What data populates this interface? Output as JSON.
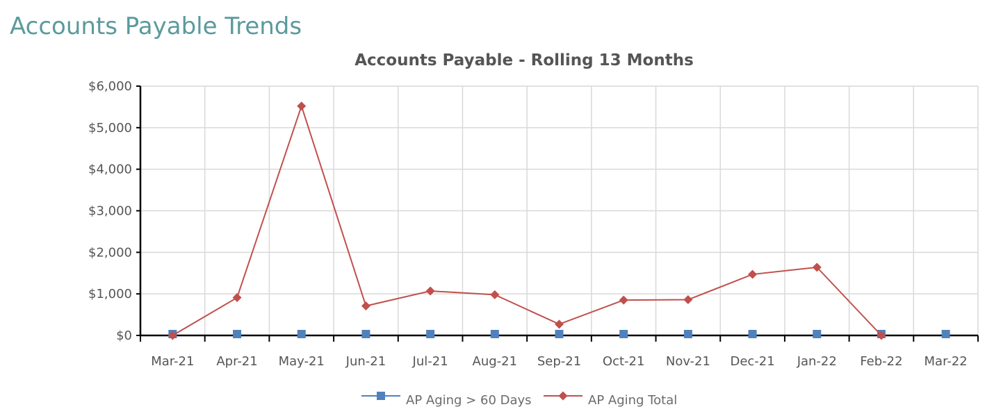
{
  "page": {
    "heading": "Accounts Payable Trends"
  },
  "colors": {
    "heading": "#5b9a9c",
    "grid": "#d9d9d9",
    "axis": "#000000",
    "ap_aging_60": "#4f81bd",
    "ap_aging_total": "#c0504d"
  },
  "chart_data": {
    "type": "line",
    "title": "Accounts Payable - Rolling 13 Months",
    "xlabel": "",
    "ylabel": "",
    "categories": [
      "Mar-21",
      "Apr-21",
      "May-21",
      "Jun-21",
      "Jul-21",
      "Aug-21",
      "Sep-21",
      "Oct-21",
      "Nov-21",
      "Dec-21",
      "Jan-22",
      "Feb-22",
      "Mar-22"
    ],
    "series": [
      {
        "name": "AP Aging > 60 Days",
        "marker": "square",
        "values": [
          0,
          0,
          0,
          0,
          0,
          0,
          0,
          0,
          0,
          0,
          0,
          0,
          0
        ]
      },
      {
        "name": "AP Aging Total",
        "marker": "diamond",
        "values": [
          0,
          910,
          5520,
          710,
          1070,
          980,
          270,
          850,
          860,
          1470,
          1640,
          0,
          null
        ]
      }
    ],
    "ylim": [
      0,
      6000
    ],
    "yticks": [
      0,
      1000,
      2000,
      3000,
      4000,
      5000,
      6000
    ],
    "ytick_labels": [
      "$0",
      "$1,000",
      "$2,000",
      "$3,000",
      "$4,000",
      "$5,000",
      "$6,000"
    ],
    "grid": true,
    "legend_position": "bottom-center"
  }
}
